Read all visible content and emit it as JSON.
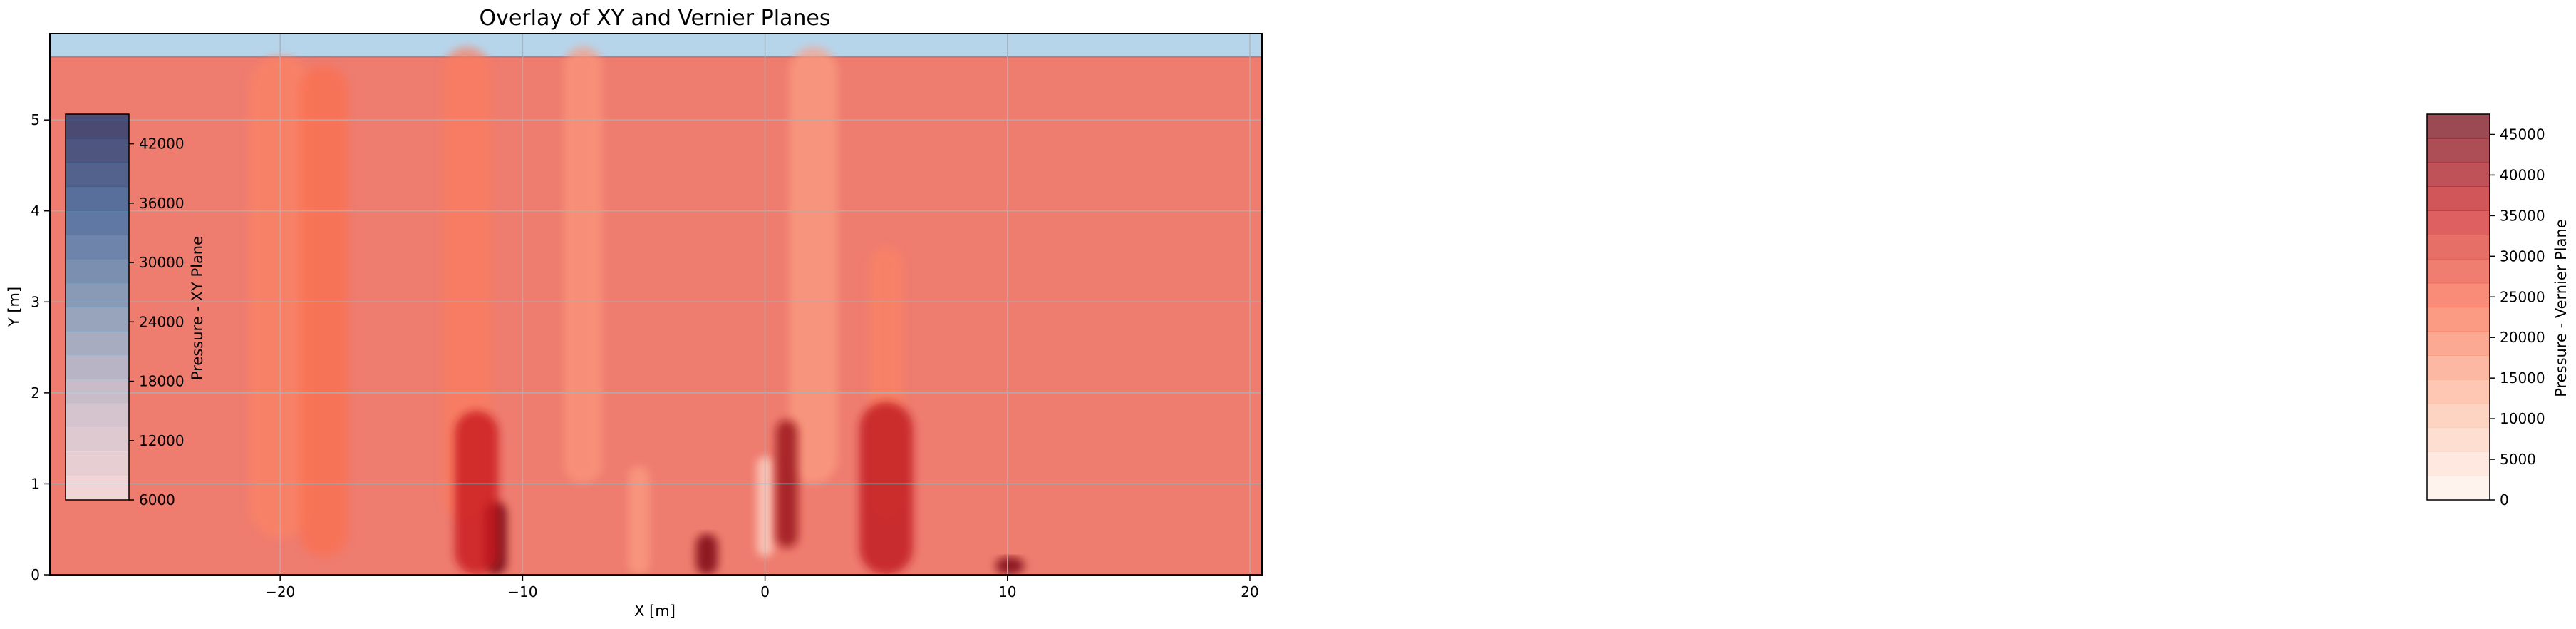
{
  "chart_data": {
    "type": "heatmap",
    "title": "Overlay of XY and Vernier Planes",
    "xlabel": "X [m]",
    "ylabel": "Y [m]",
    "xlim": [
      -29.5,
      20.5
    ],
    "ylim": [
      0,
      5.95
    ],
    "grid": true,
    "xticks": [
      -20,
      -10,
      0,
      10,
      20
    ],
    "yticks": [
      0,
      1,
      2,
      3,
      4,
      5
    ],
    "layers": [
      {
        "name": "XY Plane",
        "colormap": "Blues",
        "background_value": 20000
      },
      {
        "name": "Vernier Plane",
        "colormap": "Reds",
        "background_value": 28500
      }
    ],
    "colorbars": [
      {
        "label": "Pressure - XY Plane",
        "colormap": "Blues",
        "placement": "inset-left",
        "range": [
          6000,
          45000
        ],
        "ticks": [
          6000,
          12000,
          18000,
          24000,
          30000,
          36000,
          42000
        ]
      },
      {
        "label": "Pressure - Vernier Plane",
        "colormap": "Reds",
        "placement": "right",
        "range": [
          0,
          47500
        ],
        "ticks": [
          0,
          5000,
          10000,
          15000,
          20000,
          25000,
          30000,
          35000,
          40000,
          45000
        ]
      }
    ],
    "features": [
      {
        "kind": "low-streak",
        "x": -20,
        "y0": 0.4,
        "y1": 5.7,
        "width": 2.6,
        "value": 20000
      },
      {
        "kind": "low-streak",
        "x": -18.2,
        "y0": 0.2,
        "y1": 5.6,
        "width": 2.0,
        "value": 23000
      },
      {
        "kind": "low-streak",
        "x": -12.3,
        "y0": 0.6,
        "y1": 5.8,
        "width": 2.0,
        "value": 21000
      },
      {
        "kind": "low-streak",
        "x": -7.5,
        "y0": 1.0,
        "y1": 5.8,
        "width": 1.6,
        "value": 17000
      },
      {
        "kind": "low-streak",
        "x": 2.0,
        "y0": 1.0,
        "y1": 5.8,
        "width": 2.0,
        "value": 16000
      },
      {
        "kind": "low-streak",
        "x": 5.0,
        "y0": 0.6,
        "y1": 3.6,
        "width": 1.4,
        "value": 20000
      },
      {
        "kind": "low-streak",
        "x": 0.0,
        "y0": 0.2,
        "y1": 1.3,
        "width": 0.7,
        "value": 5000
      },
      {
        "kind": "low-streak",
        "x": -5.2,
        "y0": 0.0,
        "y1": 1.2,
        "width": 0.9,
        "value": 16000
      },
      {
        "kind": "high-spot",
        "x": -11.1,
        "y0": 0.0,
        "y1": 0.8,
        "width": 0.9,
        "value": 47000
      },
      {
        "kind": "high-spot",
        "x": -11.9,
        "y0": 0.0,
        "y1": 1.8,
        "width": 1.8,
        "value": 36000
      },
      {
        "kind": "high-spot",
        "x": -2.4,
        "y0": 0.0,
        "y1": 0.45,
        "width": 0.9,
        "value": 46000
      },
      {
        "kind": "high-spot",
        "x": 0.9,
        "y0": 0.3,
        "y1": 1.7,
        "width": 0.9,
        "value": 42000
      },
      {
        "kind": "high-spot",
        "x": 5.0,
        "y0": 0.0,
        "y1": 1.9,
        "width": 2.2,
        "value": 37000
      },
      {
        "kind": "high-spot",
        "x": 10.1,
        "y0": 0.0,
        "y1": 0.2,
        "width": 1.2,
        "value": 46000
      }
    ]
  }
}
